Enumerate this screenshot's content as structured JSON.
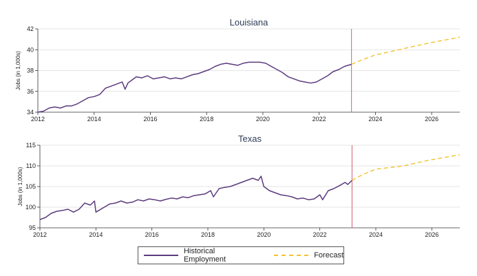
{
  "colors": {
    "historical": "#5b3a7e",
    "forecast": "#f2c230",
    "vline": "#d06070",
    "axis": "#333333",
    "grid": "#cccccc"
  },
  "legend": {
    "historical_label": "Historical Employment",
    "forecast_label": "Forecast",
    "placement": "bottom-center"
  },
  "chart_data": [
    {
      "type": "line",
      "title": "Louisiana",
      "ylabel": "Jobs (in 1,000s)",
      "xlim": [
        2012,
        2027
      ],
      "ylim": [
        34,
        42
      ],
      "xticks": [
        2012,
        2014,
        2016,
        2018,
        2020,
        2022,
        2024,
        2026
      ],
      "yticks": [
        34,
        36,
        38,
        40,
        42
      ],
      "grid": "horizontal",
      "forecast_start": 2023.15,
      "series": [
        {
          "name": "Historical Employment",
          "style": "solid",
          "x": [
            2012.0,
            2012.2,
            2012.4,
            2012.6,
            2012.8,
            2013.0,
            2013.2,
            2013.4,
            2013.6,
            2013.8,
            2014.0,
            2014.2,
            2014.4,
            2014.6,
            2014.8,
            2015.0,
            2015.1,
            2015.2,
            2015.35,
            2015.5,
            2015.7,
            2015.9,
            2016.1,
            2016.3,
            2016.5,
            2016.7,
            2016.9,
            2017.1,
            2017.3,
            2017.5,
            2017.7,
            2017.9,
            2018.1,
            2018.3,
            2018.5,
            2018.7,
            2018.9,
            2019.1,
            2019.3,
            2019.5,
            2019.7,
            2019.9,
            2020.1,
            2020.3,
            2020.5,
            2020.7,
            2020.9,
            2021.1,
            2021.3,
            2021.5,
            2021.7,
            2021.9,
            2022.1,
            2022.3,
            2022.5,
            2022.7,
            2022.9,
            2023.15
          ],
          "values": [
            34.0,
            34.1,
            34.4,
            34.5,
            34.4,
            34.6,
            34.6,
            34.8,
            35.1,
            35.4,
            35.5,
            35.7,
            36.3,
            36.5,
            36.7,
            36.9,
            36.2,
            36.8,
            37.1,
            37.4,
            37.3,
            37.5,
            37.2,
            37.3,
            37.4,
            37.2,
            37.3,
            37.2,
            37.4,
            37.6,
            37.7,
            37.9,
            38.1,
            38.4,
            38.6,
            38.7,
            38.6,
            38.5,
            38.7,
            38.8,
            38.8,
            38.8,
            38.7,
            38.4,
            38.1,
            37.8,
            37.4,
            37.2,
            37.0,
            36.9,
            36.8,
            36.9,
            37.2,
            37.5,
            37.9,
            38.1,
            38.4,
            38.6
          ]
        },
        {
          "name": "Forecast",
          "style": "dashed",
          "x": [
            2023.15,
            2023.5,
            2024.0,
            2024.5,
            2025.0,
            2025.5,
            2026.0,
            2026.5,
            2027.0
          ],
          "values": [
            38.6,
            39.0,
            39.5,
            39.8,
            40.1,
            40.4,
            40.7,
            40.95,
            41.2
          ]
        }
      ]
    },
    {
      "type": "line",
      "title": "Texas",
      "ylabel": "Jobs (in 1,000s)",
      "xlim": [
        2012,
        2027
      ],
      "ylim": [
        95,
        115
      ],
      "xticks": [
        2012,
        2014,
        2016,
        2018,
        2020,
        2022,
        2024,
        2026
      ],
      "yticks": [
        95,
        100,
        105,
        110,
        115
      ],
      "grid": "horizontal",
      "forecast_start": 2023.15,
      "series": [
        {
          "name": "Historical Employment",
          "style": "solid",
          "x": [
            2012.0,
            2012.2,
            2012.4,
            2012.6,
            2012.8,
            2013.0,
            2013.2,
            2013.4,
            2013.6,
            2013.8,
            2013.95,
            2014.0,
            2014.1,
            2014.3,
            2014.5,
            2014.7,
            2014.9,
            2015.1,
            2015.3,
            2015.5,
            2015.7,
            2015.9,
            2016.1,
            2016.3,
            2016.5,
            2016.7,
            2016.9,
            2017.1,
            2017.3,
            2017.5,
            2017.7,
            2017.9,
            2018.1,
            2018.2,
            2018.4,
            2018.6,
            2018.8,
            2019.0,
            2019.2,
            2019.4,
            2019.6,
            2019.8,
            2019.9,
            2020.0,
            2020.2,
            2020.4,
            2020.6,
            2020.8,
            2021.0,
            2021.2,
            2021.4,
            2021.6,
            2021.8,
            2022.0,
            2022.1,
            2022.3,
            2022.5,
            2022.7,
            2022.9,
            2023.0,
            2023.15
          ],
          "values": [
            97.0,
            97.5,
            98.5,
            99.0,
            99.2,
            99.5,
            98.8,
            99.5,
            101.0,
            100.5,
            101.5,
            98.8,
            99.2,
            100.0,
            100.8,
            101.0,
            101.5,
            101.0,
            101.2,
            101.8,
            101.5,
            102.0,
            101.8,
            101.5,
            101.9,
            102.2,
            102.0,
            102.5,
            102.3,
            102.8,
            103.0,
            103.2,
            104.0,
            102.5,
            104.5,
            104.8,
            105.0,
            105.5,
            106.0,
            106.5,
            107.0,
            106.5,
            107.5,
            105.0,
            104.0,
            103.5,
            103.0,
            102.8,
            102.5,
            102.0,
            102.2,
            101.8,
            102.0,
            103.0,
            101.8,
            104.0,
            104.5,
            105.2,
            106.0,
            105.5,
            106.5
          ]
        },
        {
          "name": "Forecast",
          "style": "dashed",
          "x": [
            2023.15,
            2023.5,
            2024.0,
            2024.5,
            2025.0,
            2025.5,
            2026.0,
            2026.5,
            2027.0
          ],
          "values": [
            106.5,
            107.8,
            109.2,
            109.6,
            110.0,
            110.8,
            111.5,
            112.1,
            112.7
          ]
        }
      ]
    }
  ]
}
